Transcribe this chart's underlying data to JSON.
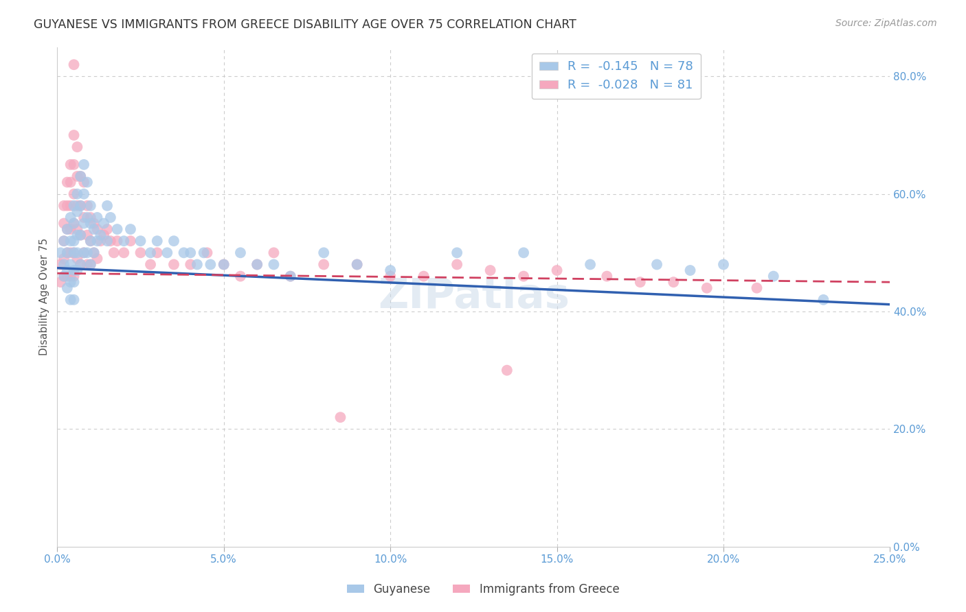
{
  "title": "GUYANESE VS IMMIGRANTS FROM GREECE DISABILITY AGE OVER 75 CORRELATION CHART",
  "source": "Source: ZipAtlas.com",
  "ylabel": "Disability Age Over 75",
  "xmin": 0.0,
  "xmax": 0.25,
  "ymin": 0.0,
  "ymax": 0.85,
  "legend_r_blue": "-0.145",
  "legend_n_blue": "78",
  "legend_r_pink": "-0.028",
  "legend_n_pink": "81",
  "legend_label_blue": "Guyanese",
  "legend_label_pink": "Immigrants from Greece",
  "blue_color": "#a8c8e8",
  "pink_color": "#f5a8be",
  "blue_line_color": "#3060b0",
  "pink_line_color": "#d04060",
  "axis_color": "#5b9bd5",
  "grid_color": "#cccccc",
  "watermark": "ZIPatlas",
  "blue_scatter": {
    "x": [
      0.001,
      0.002,
      0.002,
      0.002,
      0.003,
      0.003,
      0.003,
      0.003,
      0.004,
      0.004,
      0.004,
      0.004,
      0.004,
      0.005,
      0.005,
      0.005,
      0.005,
      0.005,
      0.005,
      0.005,
      0.006,
      0.006,
      0.006,
      0.006,
      0.006,
      0.007,
      0.007,
      0.007,
      0.007,
      0.008,
      0.008,
      0.008,
      0.008,
      0.009,
      0.009,
      0.009,
      0.01,
      0.01,
      0.01,
      0.01,
      0.011,
      0.011,
      0.012,
      0.012,
      0.013,
      0.014,
      0.015,
      0.015,
      0.016,
      0.018,
      0.02,
      0.022,
      0.025,
      0.028,
      0.03,
      0.033,
      0.035,
      0.038,
      0.04,
      0.042,
      0.044,
      0.046,
      0.05,
      0.055,
      0.06,
      0.065,
      0.07,
      0.08,
      0.09,
      0.1,
      0.12,
      0.14,
      0.16,
      0.18,
      0.19,
      0.2,
      0.215,
      0.23
    ],
    "y": [
      0.5,
      0.52,
      0.48,
      0.46,
      0.54,
      0.5,
      0.47,
      0.44,
      0.56,
      0.52,
      0.48,
      0.45,
      0.42,
      0.58,
      0.55,
      0.52,
      0.5,
      0.47,
      0.45,
      0.42,
      0.6,
      0.57,
      0.53,
      0.5,
      0.47,
      0.63,
      0.58,
      0.53,
      0.48,
      0.65,
      0.6,
      0.55,
      0.5,
      0.62,
      0.56,
      0.5,
      0.58,
      0.55,
      0.52,
      0.48,
      0.54,
      0.5,
      0.56,
      0.52,
      0.53,
      0.55,
      0.58,
      0.52,
      0.56,
      0.54,
      0.52,
      0.54,
      0.52,
      0.5,
      0.52,
      0.5,
      0.52,
      0.5,
      0.5,
      0.48,
      0.5,
      0.48,
      0.48,
      0.5,
      0.48,
      0.48,
      0.46,
      0.5,
      0.48,
      0.47,
      0.5,
      0.5,
      0.48,
      0.48,
      0.47,
      0.48,
      0.46,
      0.42
    ]
  },
  "pink_scatter": {
    "x": [
      0.001,
      0.001,
      0.002,
      0.002,
      0.002,
      0.002,
      0.002,
      0.003,
      0.003,
      0.003,
      0.003,
      0.003,
      0.004,
      0.004,
      0.004,
      0.004,
      0.004,
      0.004,
      0.005,
      0.005,
      0.005,
      0.005,
      0.005,
      0.005,
      0.005,
      0.006,
      0.006,
      0.006,
      0.006,
      0.006,
      0.007,
      0.007,
      0.007,
      0.007,
      0.008,
      0.008,
      0.008,
      0.009,
      0.009,
      0.009,
      0.01,
      0.01,
      0.01,
      0.011,
      0.011,
      0.012,
      0.012,
      0.013,
      0.014,
      0.015,
      0.016,
      0.017,
      0.018,
      0.02,
      0.022,
      0.025,
      0.028,
      0.03,
      0.035,
      0.04,
      0.045,
      0.05,
      0.055,
      0.06,
      0.065,
      0.07,
      0.08,
      0.085,
      0.09,
      0.1,
      0.11,
      0.12,
      0.13,
      0.135,
      0.14,
      0.15,
      0.165,
      0.175,
      0.185,
      0.195,
      0.21
    ],
    "y": [
      0.48,
      0.45,
      0.58,
      0.55,
      0.52,
      0.49,
      0.46,
      0.62,
      0.58,
      0.54,
      0.5,
      0.46,
      0.65,
      0.62,
      0.58,
      0.54,
      0.5,
      0.46,
      0.82,
      0.7,
      0.65,
      0.6,
      0.55,
      0.5,
      0.46,
      0.68,
      0.63,
      0.58,
      0.54,
      0.49,
      0.63,
      0.58,
      0.53,
      0.48,
      0.62,
      0.56,
      0.5,
      0.58,
      0.53,
      0.48,
      0.56,
      0.52,
      0.48,
      0.55,
      0.5,
      0.54,
      0.49,
      0.52,
      0.53,
      0.54,
      0.52,
      0.5,
      0.52,
      0.5,
      0.52,
      0.5,
      0.48,
      0.5,
      0.48,
      0.48,
      0.5,
      0.48,
      0.46,
      0.48,
      0.5,
      0.46,
      0.48,
      0.22,
      0.48,
      0.46,
      0.46,
      0.48,
      0.47,
      0.3,
      0.46,
      0.47,
      0.46,
      0.45,
      0.45,
      0.44,
      0.44
    ]
  },
  "blue_line": {
    "x0": 0.0,
    "x1": 0.25,
    "y0": 0.474,
    "y1": 0.412
  },
  "pink_line": {
    "x0": 0.0,
    "x1": 0.25,
    "y0": 0.465,
    "y1": 0.45
  }
}
